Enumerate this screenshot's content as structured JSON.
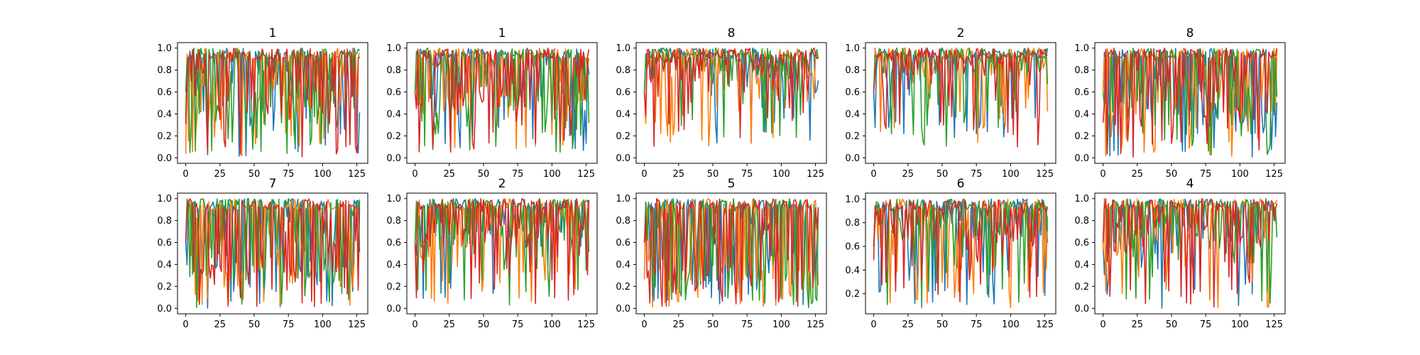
{
  "chart_data": [
    {
      "type": "line",
      "title": "1",
      "xlim": [
        -6,
        133
      ],
      "ylim": [
        -0.05,
        1.05
      ],
      "x_ticks": [
        0,
        25,
        50,
        75,
        100,
        125
      ],
      "y_ticks": [
        0.0,
        0.2,
        0.4,
        0.6,
        0.8,
        1.0
      ],
      "y_tick_labels": [
        "0.0",
        "0.2",
        "0.4",
        "0.6",
        "0.8",
        "1.0"
      ],
      "n_points": 128,
      "profile": {
        "min": 0.0,
        "mid": 0.4,
        "ramp": 0.2
      },
      "seed": 11,
      "series": [
        {
          "color": "#1f77b4"
        },
        {
          "color": "#ff7f0e"
        },
        {
          "color": "#2ca02c"
        },
        {
          "color": "#d62728"
        }
      ]
    },
    {
      "type": "line",
      "title": "1",
      "xlim": [
        -6,
        133
      ],
      "ylim": [
        -0.05,
        1.05
      ],
      "x_ticks": [
        0,
        25,
        50,
        75,
        100,
        125
      ],
      "y_ticks": [
        0.0,
        0.2,
        0.4,
        0.6,
        0.8,
        1.0
      ],
      "y_tick_labels": [
        "0.0",
        "0.2",
        "0.4",
        "0.6",
        "0.8",
        "1.0"
      ],
      "n_points": 128,
      "profile": {
        "min": 0.05,
        "mid": 0.45,
        "ramp": 0.15
      },
      "seed": 23,
      "series": [
        {
          "color": "#1f77b4"
        },
        {
          "color": "#ff7f0e"
        },
        {
          "color": "#2ca02c"
        },
        {
          "color": "#d62728"
        }
      ]
    },
    {
      "type": "line",
      "title": "8",
      "xlim": [
        -6,
        133
      ],
      "ylim": [
        -0.05,
        1.05
      ],
      "x_ticks": [
        0,
        25,
        50,
        75,
        100,
        125
      ],
      "y_ticks": [
        0.0,
        0.2,
        0.4,
        0.6,
        0.8,
        1.0
      ],
      "y_tick_labels": [
        "0.0",
        "0.2",
        "0.4",
        "0.6",
        "0.8",
        "1.0"
      ],
      "n_points": 128,
      "profile": {
        "min": 0.1,
        "mid": 0.7,
        "ramp": 0.3
      },
      "seed": 37,
      "series": [
        {
          "color": "#1f77b4"
        },
        {
          "color": "#ff7f0e"
        },
        {
          "color": "#2ca02c"
        },
        {
          "color": "#d62728"
        }
      ]
    },
    {
      "type": "line",
      "title": "2",
      "xlim": [
        -6,
        133
      ],
      "ylim": [
        -0.05,
        1.05
      ],
      "x_ticks": [
        0,
        25,
        50,
        75,
        100,
        125
      ],
      "y_ticks": [
        0.0,
        0.2,
        0.4,
        0.6,
        0.8,
        1.0
      ],
      "y_tick_labels": [
        "0.0",
        "0.2",
        "0.4",
        "0.6",
        "0.8",
        "1.0"
      ],
      "n_points": 128,
      "profile": {
        "min": 0.1,
        "mid": 0.75,
        "ramp": 0.3
      },
      "seed": 41,
      "series": [
        {
          "color": "#1f77b4"
        },
        {
          "color": "#ff7f0e"
        },
        {
          "color": "#2ca02c"
        },
        {
          "color": "#d62728"
        }
      ]
    },
    {
      "type": "line",
      "title": "8",
      "xlim": [
        -6,
        133
      ],
      "ylim": [
        -0.05,
        1.05
      ],
      "x_ticks": [
        0,
        25,
        50,
        75,
        100,
        125
      ],
      "y_ticks": [
        0.0,
        0.2,
        0.4,
        0.6,
        0.8,
        1.0
      ],
      "y_tick_labels": [
        "0.0",
        "0.2",
        "0.4",
        "0.6",
        "0.8",
        "1.0"
      ],
      "n_points": 128,
      "profile": {
        "min": 0.0,
        "mid": 0.35,
        "ramp": 0.2
      },
      "seed": 53,
      "series": [
        {
          "color": "#1f77b4"
        },
        {
          "color": "#ff7f0e"
        },
        {
          "color": "#2ca02c"
        },
        {
          "color": "#d62728"
        }
      ]
    },
    {
      "type": "line",
      "title": "7",
      "xlim": [
        -6,
        133
      ],
      "ylim": [
        -0.05,
        1.05
      ],
      "x_ticks": [
        0,
        25,
        50,
        75,
        100,
        125
      ],
      "y_ticks": [
        0.0,
        0.2,
        0.4,
        0.6,
        0.8,
        1.0
      ],
      "y_tick_labels": [
        "0.0",
        "0.2",
        "0.4",
        "0.6",
        "0.8",
        "1.0"
      ],
      "n_points": 128,
      "profile": {
        "min": 0.0,
        "mid": 0.3,
        "ramp": 0.1
      },
      "seed": 67,
      "series": [
        {
          "color": "#1f77b4"
        },
        {
          "color": "#ff7f0e"
        },
        {
          "color": "#2ca02c"
        },
        {
          "color": "#d62728"
        }
      ]
    },
    {
      "type": "line",
      "title": "2",
      "xlim": [
        -6,
        133
      ],
      "ylim": [
        -0.05,
        1.05
      ],
      "x_ticks": [
        0,
        25,
        50,
        75,
        100,
        125
      ],
      "y_ticks": [
        0.0,
        0.2,
        0.4,
        0.6,
        0.8,
        1.0
      ],
      "y_tick_labels": [
        "0.0",
        "0.2",
        "0.4",
        "0.6",
        "0.8",
        "1.0"
      ],
      "n_points": 128,
      "profile": {
        "min": 0.03,
        "mid": 0.55,
        "ramp": 0.25
      },
      "seed": 79,
      "series": [
        {
          "color": "#1f77b4"
        },
        {
          "color": "#ff7f0e"
        },
        {
          "color": "#2ca02c"
        },
        {
          "color": "#d62728"
        }
      ]
    },
    {
      "type": "line",
      "title": "5",
      "xlim": [
        -6,
        133
      ],
      "ylim": [
        -0.05,
        1.05
      ],
      "x_ticks": [
        0,
        25,
        50,
        75,
        100,
        125
      ],
      "y_ticks": [
        0.0,
        0.2,
        0.4,
        0.6,
        0.8,
        1.0
      ],
      "y_tick_labels": [
        "0.0",
        "0.2",
        "0.4",
        "0.6",
        "0.8",
        "1.0"
      ],
      "n_points": 128,
      "profile": {
        "min": 0.0,
        "mid": 0.25,
        "ramp": 0.1
      },
      "seed": 83,
      "series": [
        {
          "color": "#1f77b4"
        },
        {
          "color": "#ff7f0e"
        },
        {
          "color": "#2ca02c"
        },
        {
          "color": "#d62728"
        }
      ]
    },
    {
      "type": "line",
      "title": "6",
      "xlim": [
        -6,
        133
      ],
      "ylim": [
        0.03,
        1.05
      ],
      "x_ticks": [
        0,
        25,
        50,
        75,
        100,
        125
      ],
      "y_ticks": [
        0.2,
        0.4,
        0.6,
        0.8,
        1.0
      ],
      "y_tick_labels": [
        "0.2",
        "0.4",
        "0.6",
        "0.8",
        "1.0"
      ],
      "n_points": 128,
      "profile": {
        "min": 0.08,
        "mid": 0.65,
        "ramp": 0.3
      },
      "seed": 97,
      "series": [
        {
          "color": "#1f77b4"
        },
        {
          "color": "#ff7f0e"
        },
        {
          "color": "#2ca02c"
        },
        {
          "color": "#d62728"
        }
      ]
    },
    {
      "type": "line",
      "title": "4",
      "xlim": [
        -6,
        133
      ],
      "ylim": [
        -0.05,
        1.05
      ],
      "x_ticks": [
        0,
        25,
        50,
        75,
        100,
        125
      ],
      "y_ticks": [
        0.0,
        0.2,
        0.4,
        0.6,
        0.8,
        1.0
      ],
      "y_tick_labels": [
        "0.0",
        "0.2",
        "0.4",
        "0.6",
        "0.8",
        "1.0"
      ],
      "n_points": 128,
      "profile": {
        "min": 0.0,
        "mid": 0.5,
        "ramp": 0.25
      },
      "seed": 101,
      "series": [
        {
          "color": "#1f77b4"
        },
        {
          "color": "#ff7f0e"
        },
        {
          "color": "#2ca02c"
        },
        {
          "color": "#d62728"
        }
      ]
    }
  ]
}
